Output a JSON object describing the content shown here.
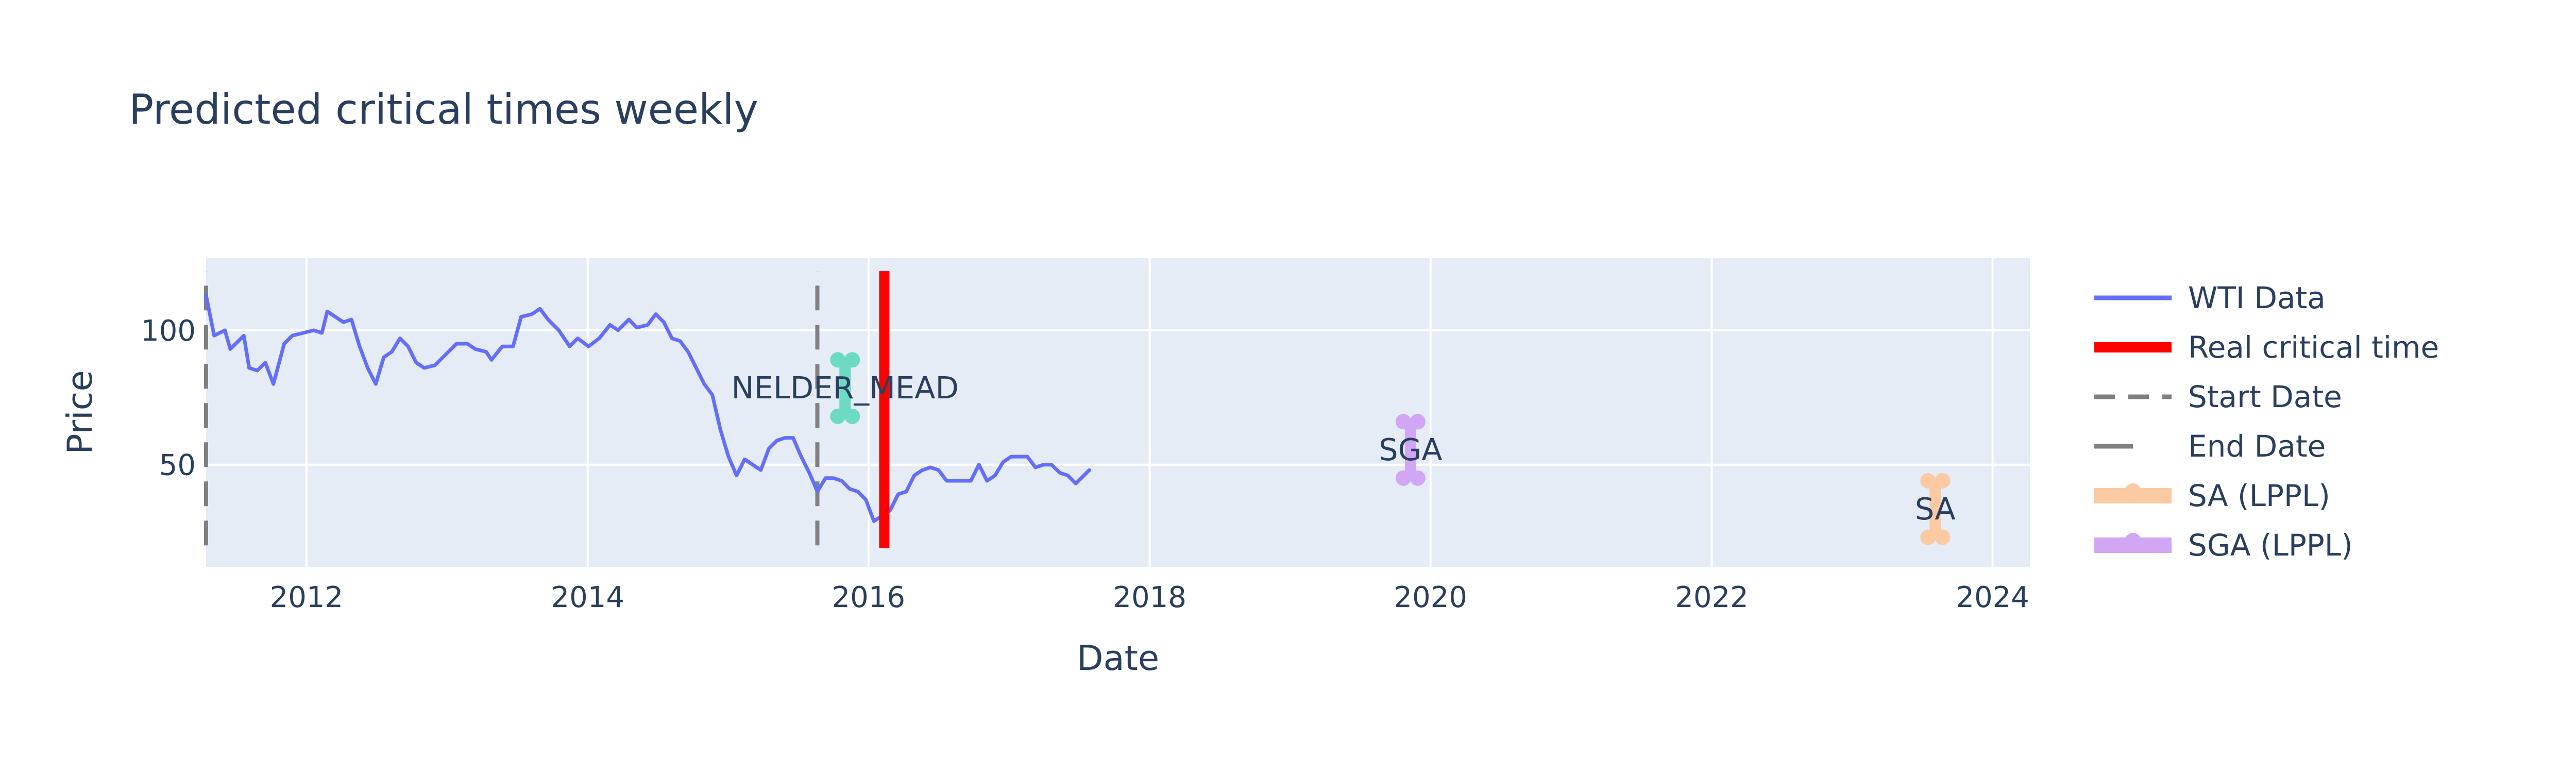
{
  "chart_data": {
    "type": "line",
    "title": "Predicted critical times weekly",
    "xlabel": "Date",
    "ylabel": "Price",
    "x_ticks": [
      "2012",
      "2014",
      "2016",
      "2018",
      "2020",
      "2022",
      "2024"
    ],
    "y_ticks": [
      50,
      100
    ],
    "xlim": [
      "2011-04-15",
      "2024-04-07"
    ],
    "ylim": [
      12,
      127
    ],
    "grid": true,
    "legend_position": "right",
    "colors": {
      "plot_background": "#e5ecf6",
      "wti": "#636efa",
      "real_critical": "#ff0000",
      "start_end": "#808080",
      "nelder_mead": "#6ddbc3",
      "sga": "#d0a6f5",
      "sa": "#fbc9a2"
    },
    "series": [
      {
        "name": "WTI Data",
        "kind": "line",
        "points": [
          [
            "2011-04-15",
            113
          ],
          [
            "2011-05-06",
            98
          ],
          [
            "2011-06-03",
            100
          ],
          [
            "2011-06-17",
            93
          ],
          [
            "2011-07-01",
            95
          ],
          [
            "2011-07-22",
            98
          ],
          [
            "2011-08-05",
            86
          ],
          [
            "2011-08-26",
            85
          ],
          [
            "2011-09-16",
            88
          ],
          [
            "2011-10-07",
            80
          ],
          [
            "2011-11-04",
            95
          ],
          [
            "2011-11-25",
            98
          ],
          [
            "2011-12-23",
            99
          ],
          [
            "2012-01-20",
            100
          ],
          [
            "2012-02-10",
            99
          ],
          [
            "2012-02-24",
            107
          ],
          [
            "2012-03-16",
            105
          ],
          [
            "2012-04-06",
            103
          ],
          [
            "2012-04-27",
            104
          ],
          [
            "2012-05-18",
            94
          ],
          [
            "2012-06-08",
            86
          ],
          [
            "2012-06-29",
            80
          ],
          [
            "2012-07-20",
            90
          ],
          [
            "2012-08-10",
            92
          ],
          [
            "2012-08-31",
            97
          ],
          [
            "2012-09-21",
            94
          ],
          [
            "2012-10-12",
            88
          ],
          [
            "2012-11-02",
            86
          ],
          [
            "2012-11-30",
            87
          ],
          [
            "2012-12-28",
            91
          ],
          [
            "2013-01-25",
            95
          ],
          [
            "2013-02-22",
            95
          ],
          [
            "2013-03-15",
            93
          ],
          [
            "2013-04-12",
            92
          ],
          [
            "2013-04-26",
            89
          ],
          [
            "2013-05-24",
            94
          ],
          [
            "2013-06-21",
            94
          ],
          [
            "2013-07-12",
            105
          ],
          [
            "2013-08-09",
            106
          ],
          [
            "2013-08-30",
            108
          ],
          [
            "2013-09-20",
            104
          ],
          [
            "2013-10-18",
            100
          ],
          [
            "2013-11-15",
            94
          ],
          [
            "2013-12-06",
            97
          ],
          [
            "2014-01-03",
            94
          ],
          [
            "2014-01-31",
            97
          ],
          [
            "2014-02-28",
            102
          ],
          [
            "2014-03-21",
            100
          ],
          [
            "2014-04-18",
            104
          ],
          [
            "2014-05-09",
            101
          ],
          [
            "2014-06-06",
            102
          ],
          [
            "2014-06-27",
            106
          ],
          [
            "2014-07-18",
            103
          ],
          [
            "2014-08-08",
            97
          ],
          [
            "2014-08-29",
            96
          ],
          [
            "2014-09-19",
            92
          ],
          [
            "2014-10-10",
            86
          ],
          [
            "2014-10-31",
            80
          ],
          [
            "2014-11-21",
            76
          ],
          [
            "2014-12-12",
            63
          ],
          [
            "2015-01-02",
            53
          ],
          [
            "2015-01-23",
            46
          ],
          [
            "2015-02-13",
            52
          ],
          [
            "2015-03-06",
            50
          ],
          [
            "2015-03-27",
            48
          ],
          [
            "2015-04-17",
            56
          ],
          [
            "2015-05-08",
            59
          ],
          [
            "2015-05-29",
            60
          ],
          [
            "2015-06-19",
            60
          ],
          [
            "2015-07-10",
            53
          ],
          [
            "2015-07-31",
            47
          ],
          [
            "2015-08-21",
            40
          ],
          [
            "2015-09-11",
            45
          ],
          [
            "2015-10-02",
            45
          ],
          [
            "2015-10-23",
            44
          ],
          [
            "2015-11-13",
            41
          ],
          [
            "2015-12-04",
            40
          ],
          [
            "2015-12-25",
            37
          ],
          [
            "2016-01-15",
            29
          ],
          [
            "2016-02-05",
            31
          ],
          [
            "2016-02-26",
            33
          ],
          [
            "2016-03-18",
            39
          ],
          [
            "2016-04-08",
            40
          ],
          [
            "2016-04-29",
            46
          ],
          [
            "2016-05-20",
            48
          ],
          [
            "2016-06-10",
            49
          ],
          [
            "2016-07-01",
            48
          ],
          [
            "2016-07-22",
            44
          ],
          [
            "2016-08-12",
            44
          ],
          [
            "2016-09-02",
            44
          ],
          [
            "2016-09-23",
            44
          ],
          [
            "2016-10-14",
            50
          ],
          [
            "2016-11-04",
            44
          ],
          [
            "2016-11-25",
            46
          ],
          [
            "2016-12-16",
            51
          ],
          [
            "2017-01-06",
            53
          ],
          [
            "2017-01-27",
            53
          ],
          [
            "2017-02-17",
            53
          ],
          [
            "2017-03-10",
            49
          ],
          [
            "2017-03-31",
            50
          ],
          [
            "2017-04-21",
            50
          ],
          [
            "2017-05-12",
            47
          ],
          [
            "2017-06-02",
            46
          ],
          [
            "2017-06-23",
            43
          ],
          [
            "2017-07-14",
            46
          ],
          [
            "2017-07-28",
            48
          ]
        ]
      },
      {
        "name": "Real critical time",
        "kind": "vline",
        "x": "2016-02-11",
        "y": [
          19,
          122
        ]
      },
      {
        "name": "Start Date",
        "kind": "vline",
        "x": "2011-04-15",
        "y": [
          20,
          122
        ]
      },
      {
        "name": "End Date",
        "kind": "vline",
        "x": "2015-08-21",
        "y": [
          20,
          122
        ]
      },
      {
        "name": "NELDER_MEAD",
        "kind": "range",
        "x": "2015-11-01",
        "y": [
          68,
          89
        ],
        "label": "NELDER_MEAD",
        "show_in_legend": false
      },
      {
        "name": "SGA (LPPL)",
        "kind": "range",
        "x": "2019-11-10",
        "y": [
          45,
          66
        ],
        "label": "SGA"
      },
      {
        "name": "SA (LPPL)",
        "kind": "range",
        "x": "2023-08-05",
        "y": [
          23,
          44
        ],
        "label": "SA"
      }
    ],
    "legend": [
      "WTI Data",
      "Real critical time",
      "Start Date",
      "End Date",
      "SA (LPPL)",
      "SGA (LPPL)"
    ]
  }
}
